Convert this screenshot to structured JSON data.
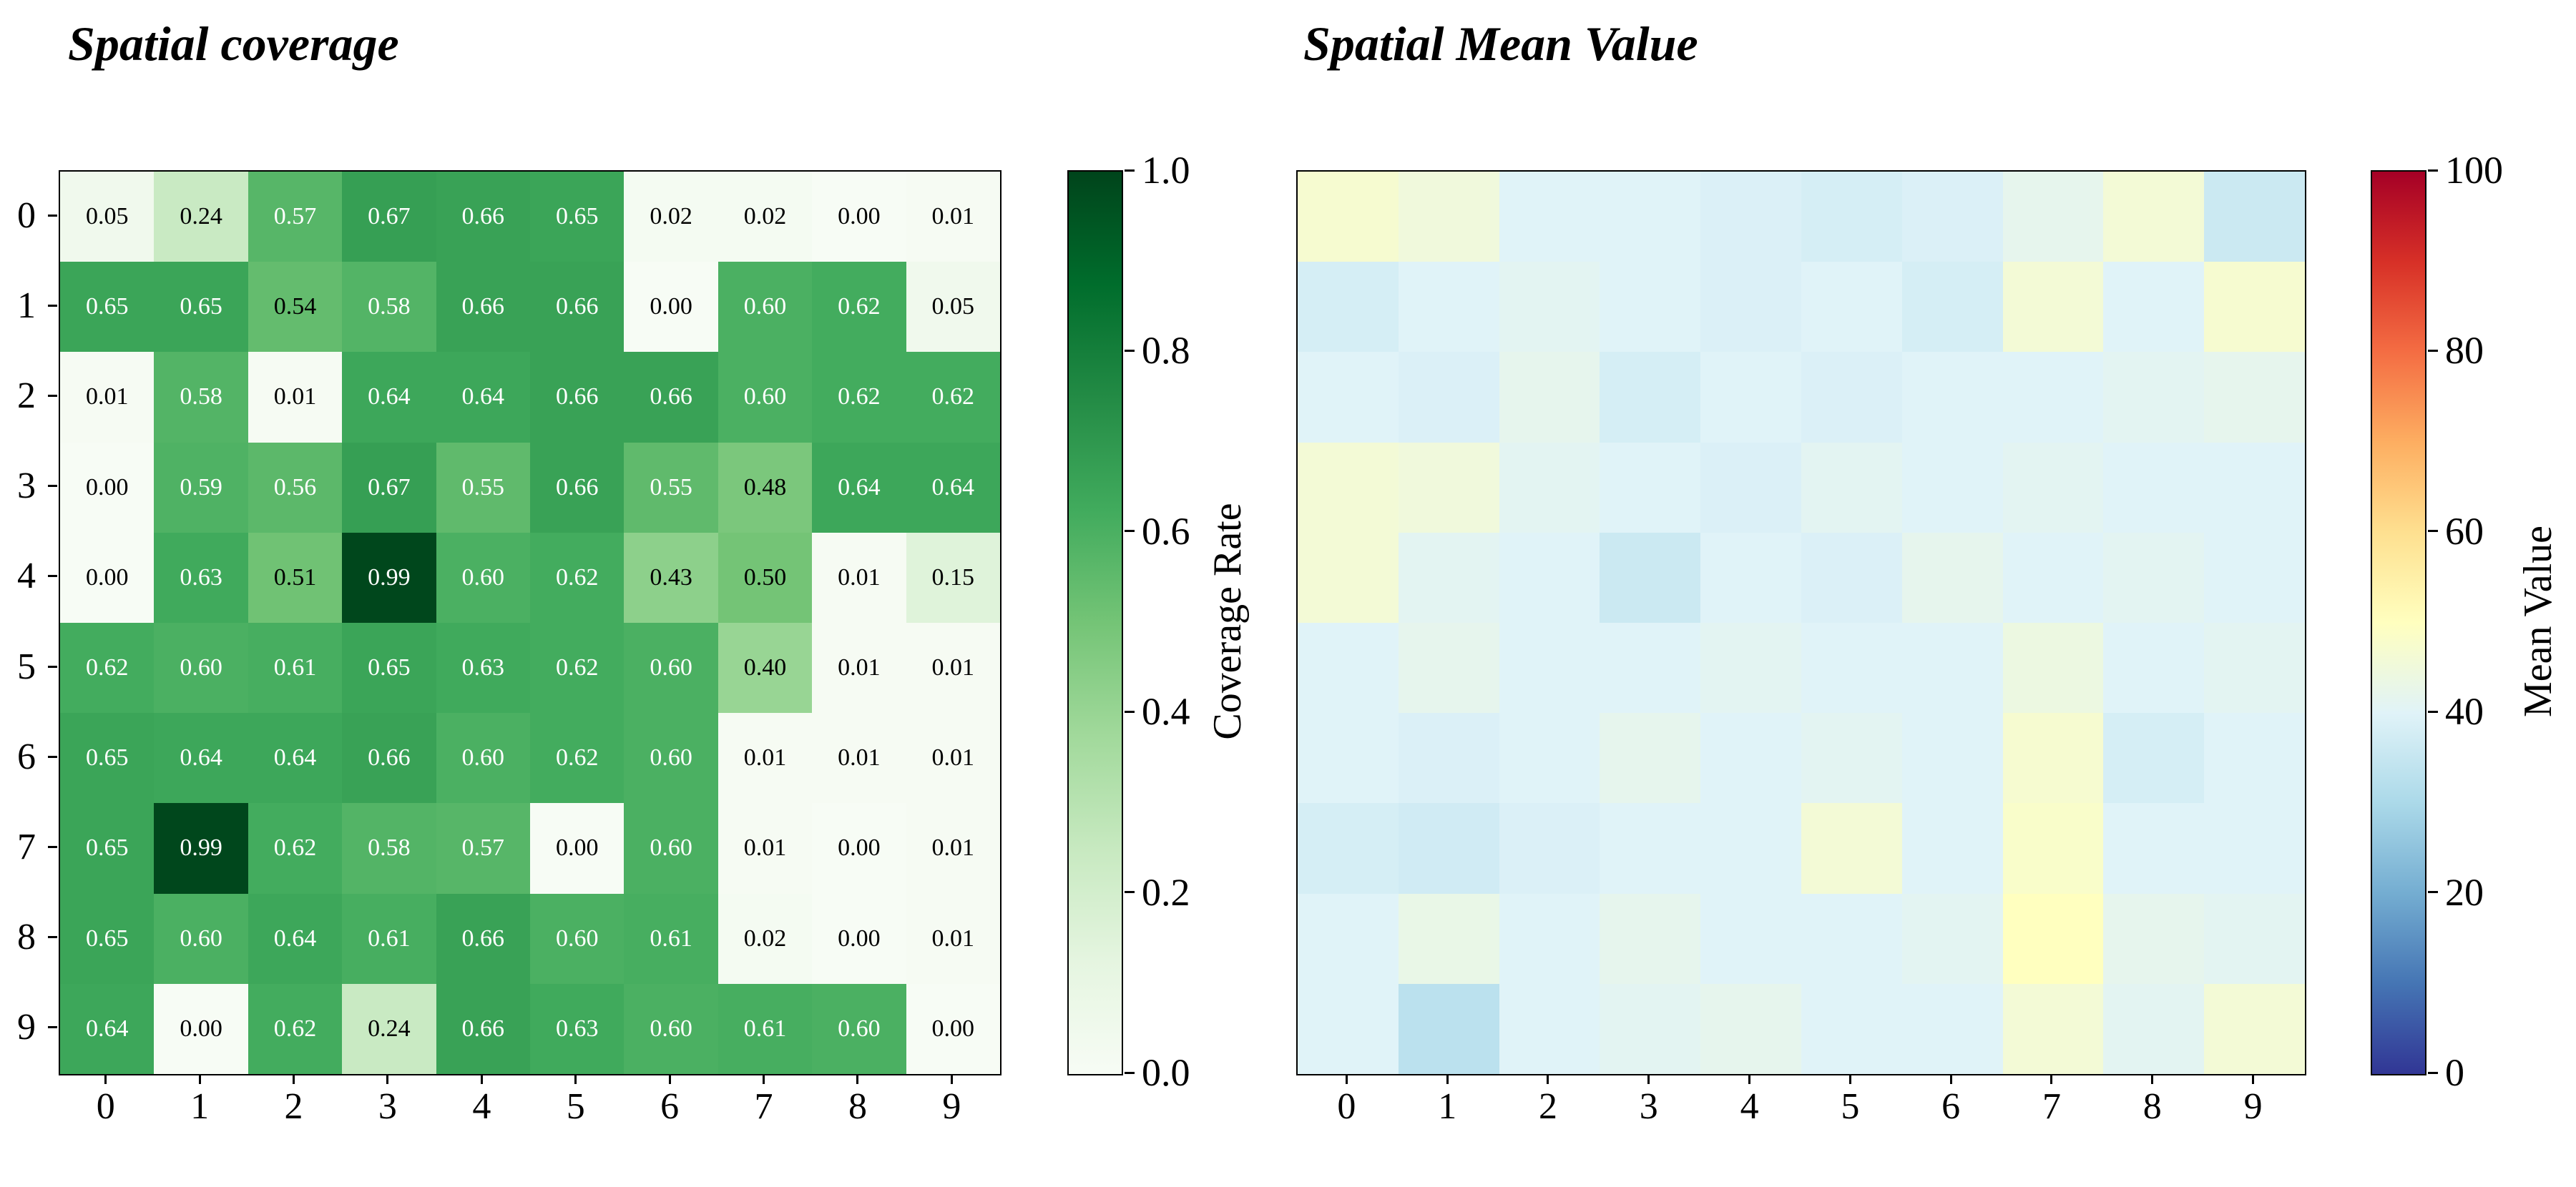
{
  "colors": {
    "background": "#ffffff",
    "text": "#000000",
    "annotation_light": "#ffffff",
    "annotation_dark": "#000000",
    "coverage_max_green": "#00441b",
    "mean_low_blue": "#313695",
    "mean_mid_yellow": "#ffffbf",
    "mean_high_red": "#a50026"
  },
  "chart_data": [
    {
      "type": "heatmap",
      "title": "Spatial coverage",
      "colormap": "Greens",
      "vmin": 0.0,
      "vmax": 1.0,
      "annotated": true,
      "show_row_labels": true,
      "rows": [
        "0",
        "1",
        "2",
        "3",
        "4",
        "5",
        "6",
        "7",
        "8",
        "9"
      ],
      "cols": [
        "0",
        "1",
        "2",
        "3",
        "4",
        "5",
        "6",
        "7",
        "8",
        "9"
      ],
      "values": [
        [
          0.05,
          0.24,
          0.57,
          0.67,
          0.66,
          0.65,
          0.02,
          0.02,
          0.0,
          0.01
        ],
        [
          0.65,
          0.65,
          0.54,
          0.58,
          0.66,
          0.66,
          0.0,
          0.6,
          0.62,
          0.05
        ],
        [
          0.01,
          0.58,
          0.01,
          0.64,
          0.64,
          0.66,
          0.66,
          0.6,
          0.62,
          0.62
        ],
        [
          0.0,
          0.59,
          0.56,
          0.67,
          0.55,
          0.66,
          0.55,
          0.48,
          0.64,
          0.64
        ],
        [
          0.0,
          0.63,
          0.51,
          0.99,
          0.6,
          0.62,
          0.43,
          0.5,
          0.01,
          0.15
        ],
        [
          0.62,
          0.6,
          0.61,
          0.65,
          0.63,
          0.62,
          0.6,
          0.4,
          0.01,
          0.01
        ],
        [
          0.65,
          0.64,
          0.64,
          0.66,
          0.6,
          0.62,
          0.6,
          0.01,
          0.01,
          0.01
        ],
        [
          0.65,
          0.99,
          0.62,
          0.58,
          0.57,
          0.0,
          0.6,
          0.01,
          0.0,
          0.01
        ],
        [
          0.65,
          0.6,
          0.64,
          0.61,
          0.66,
          0.6,
          0.61,
          0.02,
          0.0,
          0.01
        ],
        [
          0.64,
          0.0,
          0.62,
          0.24,
          0.66,
          0.63,
          0.6,
          0.61,
          0.6,
          0.0
        ]
      ],
      "colorbar_label": "Coverage Rate",
      "colorbar_ticks": [
        "1.0",
        "0.8",
        "0.6",
        "0.4",
        "0.2",
        "0.0"
      ]
    },
    {
      "type": "heatmap",
      "title": "Spatial Mean Value",
      "colormap": "RdYlBu_r",
      "vmin": 0,
      "vmax": 100,
      "annotated": false,
      "show_row_labels": false,
      "rows": [
        "0",
        "1",
        "2",
        "3",
        "4",
        "5",
        "6",
        "7",
        "8",
        "9"
      ],
      "cols": [
        "0",
        "1",
        "2",
        "3",
        "4",
        "5",
        "6",
        "7",
        "8",
        "9"
      ],
      "values": [
        [
          47,
          45,
          40,
          40,
          39,
          38,
          39,
          42,
          46,
          36
        ],
        [
          38,
          40,
          41,
          40,
          39,
          40,
          38,
          46,
          40,
          47
        ],
        [
          40,
          39,
          42,
          38,
          40,
          39,
          40,
          40,
          41,
          42
        ],
        [
          46,
          45,
          41,
          40,
          39,
          41,
          40,
          41,
          40,
          40
        ],
        [
          46,
          41,
          40,
          36,
          40,
          39,
          42,
          40,
          41,
          40
        ],
        [
          40,
          42,
          40,
          40,
          41,
          40,
          40,
          44,
          40,
          41
        ],
        [
          40,
          39,
          40,
          42,
          40,
          41,
          40,
          47,
          38,
          40
        ],
        [
          38,
          37,
          39,
          40,
          40,
          46,
          40,
          48,
          40,
          40
        ],
        [
          40,
          43,
          40,
          42,
          40,
          40,
          41,
          50,
          42,
          41
        ],
        [
          40,
          33,
          40,
          41,
          42,
          40,
          40,
          46,
          41,
          46
        ]
      ],
      "colorbar_label": "Mean Value",
      "colorbar_ticks": [
        "100",
        "80",
        "60",
        "40",
        "20",
        "0"
      ]
    }
  ]
}
